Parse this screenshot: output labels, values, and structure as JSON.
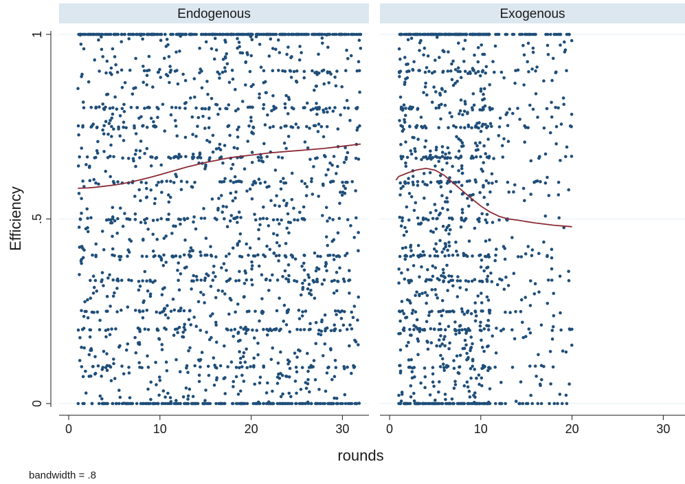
{
  "chart_data": {
    "type": "scatter",
    "xlabel": "rounds",
    "ylabel": "Efficiency",
    "note": "bandwidth = .8",
    "xlim": [
      0,
      33
    ],
    "ylim": [
      0,
      1
    ],
    "xticks": [
      0,
      10,
      20,
      30
    ],
    "xtick_labels": [
      "0",
      "10",
      "20",
      "30"
    ],
    "yticks": [
      0,
      0.5,
      1
    ],
    "ytick_labels": [
      "0",
      ".5",
      "1"
    ],
    "grid": "horizontal",
    "colors": {
      "points": "#1f4e79",
      "smoother": "#8b2a35",
      "strip": "#dce7ef",
      "grid": "#e6edf2"
    },
    "panels": [
      {
        "label": "Endogenous",
        "rounds_max": 32,
        "n_points": 1900,
        "smoother": {
          "x": [
            1,
            2,
            3,
            4,
            5,
            6,
            7,
            8,
            9,
            10,
            11,
            12,
            13,
            14,
            15,
            16,
            17,
            18,
            19,
            20,
            21,
            22,
            23,
            24,
            25,
            26,
            27,
            28,
            29,
            30,
            31,
            32
          ],
          "y": [
            0.583,
            0.584,
            0.586,
            0.589,
            0.592,
            0.596,
            0.601,
            0.607,
            0.613,
            0.62,
            0.627,
            0.634,
            0.641,
            0.647,
            0.653,
            0.658,
            0.663,
            0.667,
            0.67,
            0.673,
            0.676,
            0.679,
            0.681,
            0.683,
            0.685,
            0.687,
            0.689,
            0.691,
            0.694,
            0.697,
            0.7,
            0.703
          ]
        }
      },
      {
        "label": "Exogenous",
        "rounds_max": 20,
        "n_points": 1250,
        "smoother": {
          "x": [
            0.7,
            1,
            2,
            3,
            4,
            5,
            6,
            7,
            8,
            9,
            10,
            11,
            12,
            13,
            14,
            15,
            16,
            17,
            18,
            19,
            20
          ],
          "y": [
            0.605,
            0.615,
            0.625,
            0.633,
            0.637,
            0.632,
            0.618,
            0.597,
            0.576,
            0.555,
            0.535,
            0.519,
            0.507,
            0.5,
            0.497,
            0.493,
            0.489,
            0.486,
            0.483,
            0.481,
            0.479
          ]
        }
      }
    ]
  }
}
